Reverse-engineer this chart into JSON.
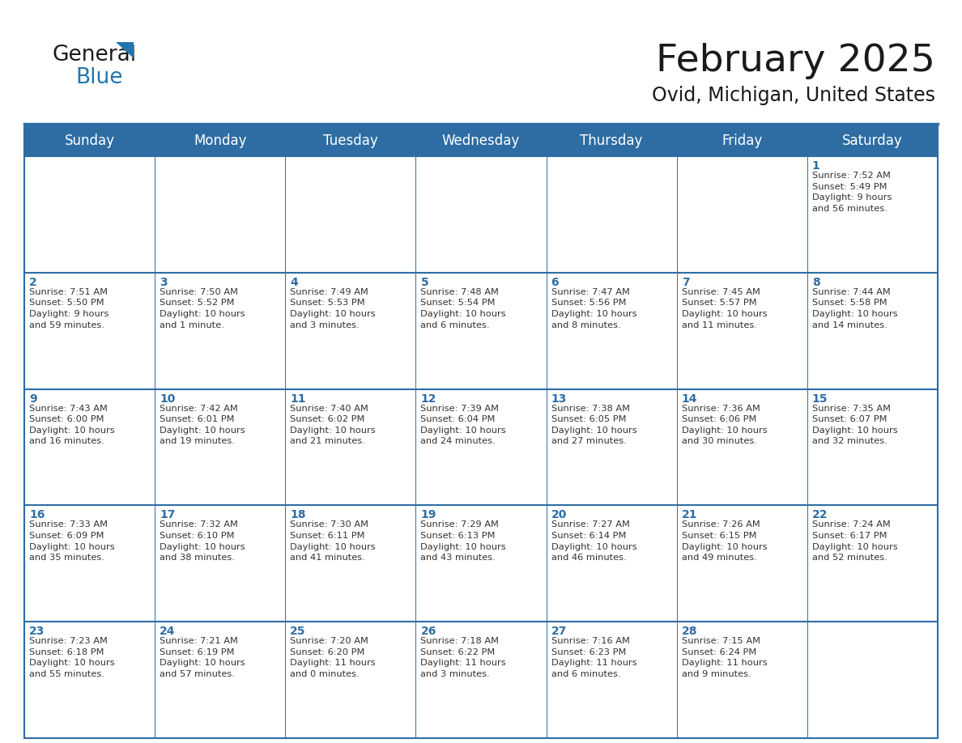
{
  "title": "February 2025",
  "subtitle": "Ovid, Michigan, United States",
  "header_bg": "#2E6DA4",
  "header_text": "#FFFFFF",
  "cell_bg": "#FFFFFF",
  "cell_bg_alt": "#F5F5F5",
  "cell_text": "#333333",
  "day_num_color": "#2E6DA4",
  "border_color": "#2E6DA4",
  "days_of_week": [
    "Sunday",
    "Monday",
    "Tuesday",
    "Wednesday",
    "Thursday",
    "Friday",
    "Saturday"
  ],
  "calendar_data": [
    [
      "",
      "",
      "",
      "",
      "",
      "",
      "1\nSunrise: 7:52 AM\nSunset: 5:49 PM\nDaylight: 9 hours\nand 56 minutes."
    ],
    [
      "2\nSunrise: 7:51 AM\nSunset: 5:50 PM\nDaylight: 9 hours\nand 59 minutes.",
      "3\nSunrise: 7:50 AM\nSunset: 5:52 PM\nDaylight: 10 hours\nand 1 minute.",
      "4\nSunrise: 7:49 AM\nSunset: 5:53 PM\nDaylight: 10 hours\nand 3 minutes.",
      "5\nSunrise: 7:48 AM\nSunset: 5:54 PM\nDaylight: 10 hours\nand 6 minutes.",
      "6\nSunrise: 7:47 AM\nSunset: 5:56 PM\nDaylight: 10 hours\nand 8 minutes.",
      "7\nSunrise: 7:45 AM\nSunset: 5:57 PM\nDaylight: 10 hours\nand 11 minutes.",
      "8\nSunrise: 7:44 AM\nSunset: 5:58 PM\nDaylight: 10 hours\nand 14 minutes."
    ],
    [
      "9\nSunrise: 7:43 AM\nSunset: 6:00 PM\nDaylight: 10 hours\nand 16 minutes.",
      "10\nSunrise: 7:42 AM\nSunset: 6:01 PM\nDaylight: 10 hours\nand 19 minutes.",
      "11\nSunrise: 7:40 AM\nSunset: 6:02 PM\nDaylight: 10 hours\nand 21 minutes.",
      "12\nSunrise: 7:39 AM\nSunset: 6:04 PM\nDaylight: 10 hours\nand 24 minutes.",
      "13\nSunrise: 7:38 AM\nSunset: 6:05 PM\nDaylight: 10 hours\nand 27 minutes.",
      "14\nSunrise: 7:36 AM\nSunset: 6:06 PM\nDaylight: 10 hours\nand 30 minutes.",
      "15\nSunrise: 7:35 AM\nSunset: 6:07 PM\nDaylight: 10 hours\nand 32 minutes."
    ],
    [
      "16\nSunrise: 7:33 AM\nSunset: 6:09 PM\nDaylight: 10 hours\nand 35 minutes.",
      "17\nSunrise: 7:32 AM\nSunset: 6:10 PM\nDaylight: 10 hours\nand 38 minutes.",
      "18\nSunrise: 7:30 AM\nSunset: 6:11 PM\nDaylight: 10 hours\nand 41 minutes.",
      "19\nSunrise: 7:29 AM\nSunset: 6:13 PM\nDaylight: 10 hours\nand 43 minutes.",
      "20\nSunrise: 7:27 AM\nSunset: 6:14 PM\nDaylight: 10 hours\nand 46 minutes.",
      "21\nSunrise: 7:26 AM\nSunset: 6:15 PM\nDaylight: 10 hours\nand 49 minutes.",
      "22\nSunrise: 7:24 AM\nSunset: 6:17 PM\nDaylight: 10 hours\nand 52 minutes."
    ],
    [
      "23\nSunrise: 7:23 AM\nSunset: 6:18 PM\nDaylight: 10 hours\nand 55 minutes.",
      "24\nSunrise: 7:21 AM\nSunset: 6:19 PM\nDaylight: 10 hours\nand 57 minutes.",
      "25\nSunrise: 7:20 AM\nSunset: 6:20 PM\nDaylight: 11 hours\nand 0 minutes.",
      "26\nSunrise: 7:18 AM\nSunset: 6:22 PM\nDaylight: 11 hours\nand 3 minutes.",
      "27\nSunrise: 7:16 AM\nSunset: 6:23 PM\nDaylight: 11 hours\nand 6 minutes.",
      "28\nSunrise: 7:15 AM\nSunset: 6:24 PM\nDaylight: 11 hours\nand 9 minutes.",
      ""
    ]
  ],
  "logo_color_general": "#1a1a1a",
  "logo_color_blue": "#2176AE",
  "title_fontsize": 34,
  "subtitle_fontsize": 17,
  "header_fontsize": 12,
  "day_num_fontsize": 10,
  "cell_fontsize": 8.2,
  "cell_linespacing": 1.45
}
